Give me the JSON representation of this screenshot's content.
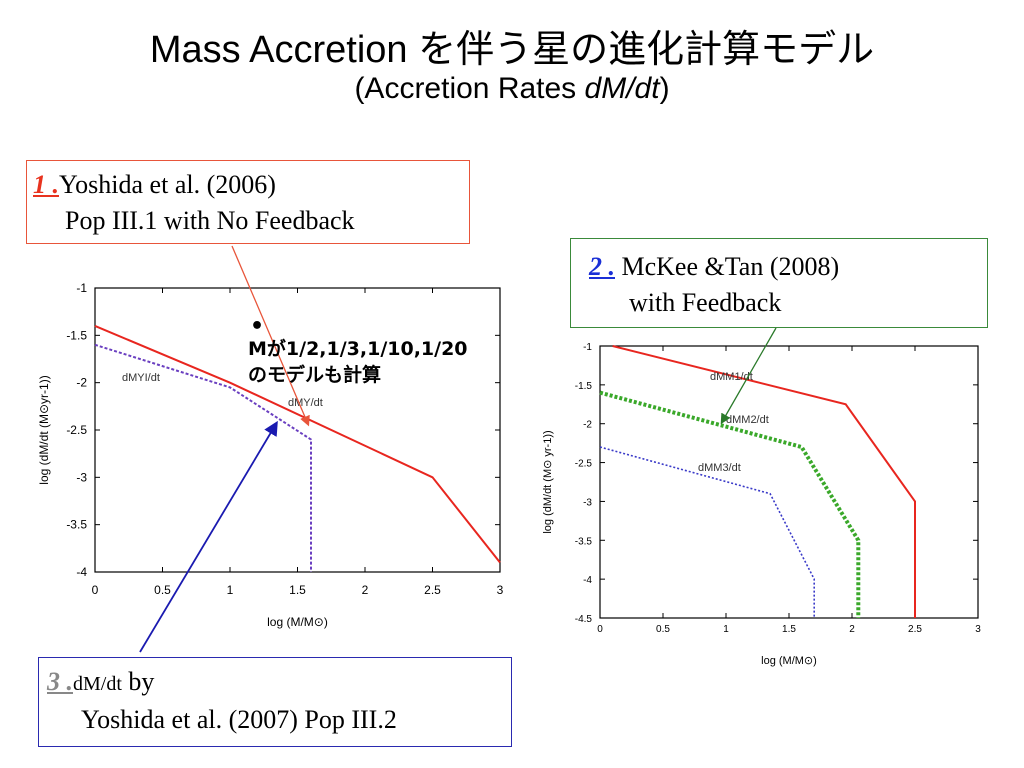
{
  "title": {
    "main": "Mass Accretion を伴う星の進化計算モデル",
    "sub_prefix": "(Accretion Rates ",
    "sub_italic": "dM/dt",
    "sub_suffix": ")"
  },
  "boxes": {
    "box1": {
      "num": "1 .",
      "line1": "Yoshida et al. (2006)",
      "line2": "Pop III.1 with No Feedback",
      "border_color": "#e8553a",
      "num_color": "#e8331f"
    },
    "box2": {
      "num": "2 .",
      "line1": "McKee &Tan (2008)",
      "line2": "with Feedback",
      "border_color": "#3a8a3a",
      "num_color": "#1a2fd6"
    },
    "box3": {
      "num": "3 .",
      "line1_small": "dM/dt",
      "line1_rest": " by",
      "line2": "Yoshida et al. (2007) Pop III.2",
      "border_color": "#2a2ab0",
      "num_color": "#888888"
    }
  },
  "note": {
    "bullet": "•",
    "line1": "Mが1/2,1/3,1/10,1/20",
    "line2": "のモデルも計算"
  },
  "chart_data": [
    {
      "type": "line",
      "xlabel": "log (M/M⊙)",
      "ylabel": "log (dM/dt  (M⊙yr-1))",
      "xlim": [
        0,
        3
      ],
      "ylim": [
        -4,
        -1
      ],
      "x_ticks": [
        "0",
        "0.5",
        "1",
        "1.5",
        "2",
        "2.5",
        "3"
      ],
      "y_ticks": [
        "-1",
        "-1.5",
        "-2",
        "-2.5",
        "-3",
        "-3.5",
        "-4"
      ],
      "series": [
        {
          "name": "",
          "color": "#e8261f",
          "style": "solid",
          "x": [
            0,
            1.0,
            2.5,
            3.0
          ],
          "y": [
            -1.4,
            -2.0,
            -3.0,
            -3.9
          ]
        },
        {
          "name": "dMYI/dt",
          "color": "#6a3fc0",
          "style": "dotted",
          "x": [
            0,
            1.0,
            1.6,
            1.6
          ],
          "y": [
            -1.6,
            -2.05,
            -2.6,
            -4.0
          ]
        },
        {
          "name": "dMY/dt",
          "color": "#6a3fc0",
          "style": "dotted",
          "x": [],
          "y": []
        }
      ]
    },
    {
      "type": "line",
      "xlabel": "log (M/M⊙)",
      "ylabel": "log (dM/dt  (M⊙ yr-1))",
      "xlim": [
        0,
        3
      ],
      "ylim": [
        -4.5,
        -1
      ],
      "x_ticks": [
        "0",
        "0.5",
        "1",
        "1.5",
        "2",
        "2.5",
        "3"
      ],
      "y_ticks": [
        "-1",
        "-1.5",
        "-2",
        "-2.5",
        "-3",
        "-3.5",
        "-4",
        "-4.5"
      ],
      "series": [
        {
          "name": "dMM1/dt",
          "color": "#e8261f",
          "style": "solid",
          "x": [
            0.1,
            1.95,
            2.5,
            2.5
          ],
          "y": [
            -1.0,
            -1.75,
            -3.0,
            -4.5
          ]
        },
        {
          "name": "dMM2/dt",
          "color": "#3aa82a",
          "style": "dotted",
          "x": [
            0,
            1.6,
            2.05,
            2.05
          ],
          "y": [
            -1.6,
            -2.3,
            -3.5,
            -4.5
          ]
        },
        {
          "name": "dMM3/dt",
          "color": "#3a3ac8",
          "style": "dotted",
          "x": [
            0,
            1.35,
            1.7,
            1.7
          ],
          "y": [
            -2.3,
            -2.9,
            -4.0,
            -4.5
          ]
        }
      ]
    }
  ]
}
